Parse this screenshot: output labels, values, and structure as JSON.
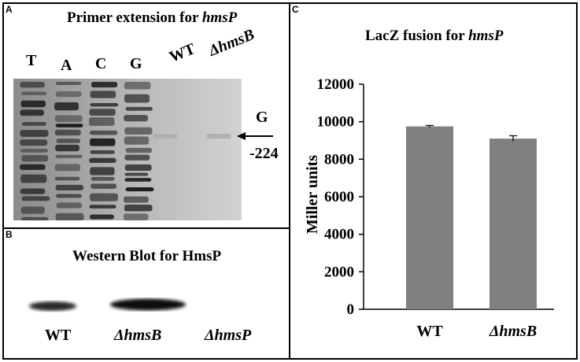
{
  "panel_a": {
    "letter": "A",
    "title_prefix": "Primer extension for ",
    "title_gene": "hmsP",
    "lanes": [
      "T",
      "A",
      "C",
      "G"
    ],
    "sample_lanes": [
      "WT",
      "ΔhmsB"
    ],
    "marker_base": "G",
    "marker_position": "-224"
  },
  "panel_b": {
    "letter": "B",
    "title": "Western Blot for HmsP",
    "lanes": [
      "WT",
      "ΔhmsB",
      "ΔhmsP"
    ]
  },
  "panel_c": {
    "letter": "C",
    "title_prefix": "LacZ fusion for ",
    "title_gene": "hmsP"
  },
  "chart_data": {
    "type": "bar",
    "title": "LacZ fusion for hmsP",
    "categories": [
      "WT",
      "ΔhmsB"
    ],
    "values": [
      9750,
      9100
    ],
    "error": [
      50,
      150
    ],
    "xlabel": "",
    "ylabel": "Miller units",
    "ylim": [
      0,
      12000
    ],
    "yticks": [
      "0",
      "2000",
      "4000",
      "6000",
      "8000",
      "10000",
      "12000"
    ],
    "grid": false,
    "bar_color": "#808080"
  }
}
